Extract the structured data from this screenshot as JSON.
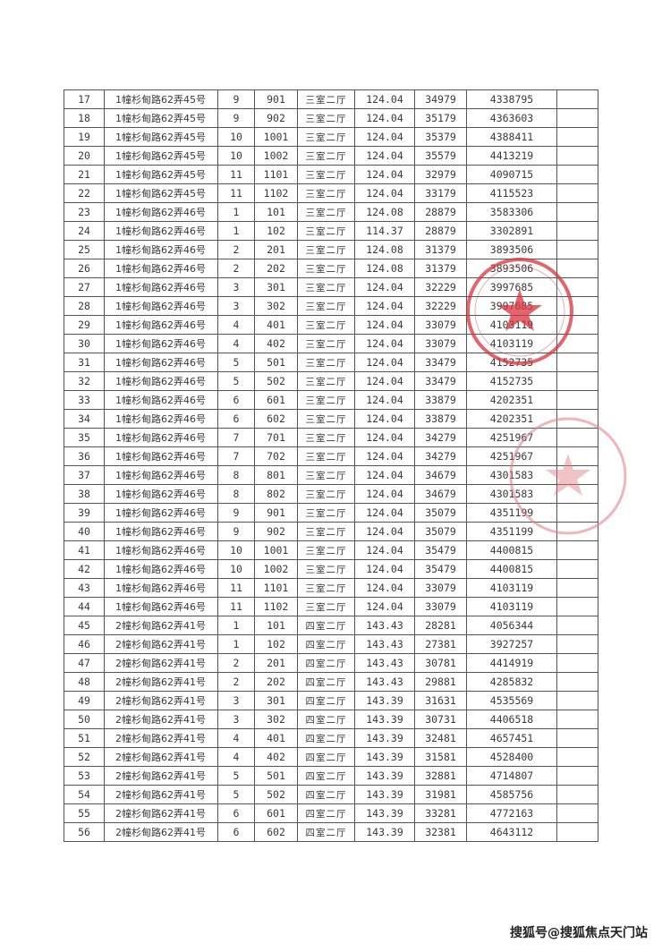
{
  "table": {
    "rows": [
      [
        "17",
        "1幢杉甸路62弄45号",
        "9",
        "901",
        "三室二厅",
        "124.04",
        "34979",
        "4338795",
        ""
      ],
      [
        "18",
        "1幢杉甸路62弄45号",
        "9",
        "902",
        "三室二厅",
        "124.04",
        "35179",
        "4363603",
        ""
      ],
      [
        "19",
        "1幢杉甸路62弄45号",
        "10",
        "1001",
        "三室二厅",
        "124.04",
        "35379",
        "4388411",
        ""
      ],
      [
        "20",
        "1幢杉甸路62弄45号",
        "10",
        "1002",
        "三室二厅",
        "124.04",
        "35579",
        "4413219",
        ""
      ],
      [
        "21",
        "1幢杉甸路62弄45号",
        "11",
        "1101",
        "三室二厅",
        "124.04",
        "32979",
        "4090715",
        ""
      ],
      [
        "22",
        "1幢杉甸路62弄45号",
        "11",
        "1102",
        "三室二厅",
        "124.04",
        "33179",
        "4115523",
        ""
      ],
      [
        "23",
        "1幢杉甸路62弄46号",
        "1",
        "101",
        "三室二厅",
        "124.08",
        "28879",
        "3583306",
        ""
      ],
      [
        "24",
        "1幢杉甸路62弄46号",
        "1",
        "102",
        "三室二厅",
        "114.37",
        "28879",
        "3302891",
        ""
      ],
      [
        "25",
        "1幢杉甸路62弄46号",
        "2",
        "201",
        "三室二厅",
        "124.08",
        "31379",
        "3893506",
        ""
      ],
      [
        "26",
        "1幢杉甸路62弄46号",
        "2",
        "202",
        "三室二厅",
        "124.08",
        "31379",
        "3893506",
        ""
      ],
      [
        "27",
        "1幢杉甸路62弄46号",
        "3",
        "301",
        "三室二厅",
        "124.04",
        "32229",
        "3997685",
        ""
      ],
      [
        "28",
        "1幢杉甸路62弄46号",
        "3",
        "302",
        "三室二厅",
        "124.04",
        "32229",
        "3997685",
        ""
      ],
      [
        "29",
        "1幢杉甸路62弄46号",
        "4",
        "401",
        "三室二厅",
        "124.04",
        "33079",
        "4103119",
        ""
      ],
      [
        "30",
        "1幢杉甸路62弄46号",
        "4",
        "402",
        "三室二厅",
        "124.04",
        "33079",
        "4103119",
        ""
      ],
      [
        "31",
        "1幢杉甸路62弄46号",
        "5",
        "501",
        "三室二厅",
        "124.04",
        "33479",
        "4152735",
        ""
      ],
      [
        "32",
        "1幢杉甸路62弄46号",
        "5",
        "502",
        "三室二厅",
        "124.04",
        "33479",
        "4152735",
        ""
      ],
      [
        "33",
        "1幢杉甸路62弄46号",
        "6",
        "601",
        "三室二厅",
        "124.04",
        "33879",
        "4202351",
        ""
      ],
      [
        "34",
        "1幢杉甸路62弄46号",
        "6",
        "602",
        "三室二厅",
        "124.04",
        "33879",
        "4202351",
        ""
      ],
      [
        "35",
        "1幢杉甸路62弄46号",
        "7",
        "701",
        "三室二厅",
        "124.04",
        "34279",
        "4251967",
        ""
      ],
      [
        "36",
        "1幢杉甸路62弄46号",
        "7",
        "702",
        "三室二厅",
        "124.04",
        "34279",
        "4251967",
        ""
      ],
      [
        "37",
        "1幢杉甸路62弄46号",
        "8",
        "801",
        "三室二厅",
        "124.04",
        "34679",
        "4301583",
        ""
      ],
      [
        "38",
        "1幢杉甸路62弄46号",
        "8",
        "802",
        "三室二厅",
        "124.04",
        "34679",
        "4301583",
        ""
      ],
      [
        "39",
        "1幢杉甸路62弄46号",
        "9",
        "901",
        "三室二厅",
        "124.04",
        "35079",
        "4351199",
        ""
      ],
      [
        "40",
        "1幢杉甸路62弄46号",
        "9",
        "902",
        "三室二厅",
        "124.04",
        "35079",
        "4351199",
        ""
      ],
      [
        "41",
        "1幢杉甸路62弄46号",
        "10",
        "1001",
        "三室二厅",
        "124.04",
        "35479",
        "4400815",
        ""
      ],
      [
        "42",
        "1幢杉甸路62弄46号",
        "10",
        "1002",
        "三室二厅",
        "124.04",
        "35479",
        "4400815",
        ""
      ],
      [
        "43",
        "1幢杉甸路62弄46号",
        "11",
        "1101",
        "三室二厅",
        "124.04",
        "33079",
        "4103119",
        ""
      ],
      [
        "44",
        "1幢杉甸路62弄46号",
        "11",
        "1102",
        "三室二厅",
        "124.04",
        "33079",
        "4103119",
        ""
      ],
      [
        "45",
        "2幢杉甸路62弄41号",
        "1",
        "101",
        "四室二厅",
        "143.43",
        "28281",
        "4056344",
        ""
      ],
      [
        "46",
        "2幢杉甸路62弄41号",
        "1",
        "102",
        "四室二厅",
        "143.43",
        "27381",
        "3927257",
        ""
      ],
      [
        "47",
        "2幢杉甸路62弄41号",
        "2",
        "201",
        "四室二厅",
        "143.43",
        "30781",
        "4414919",
        ""
      ],
      [
        "48",
        "2幢杉甸路62弄41号",
        "2",
        "202",
        "四室二厅",
        "143.43",
        "29881",
        "4285832",
        ""
      ],
      [
        "49",
        "2幢杉甸路62弄41号",
        "3",
        "301",
        "四室二厅",
        "143.39",
        "31631",
        "4535569",
        ""
      ],
      [
        "50",
        "2幢杉甸路62弄41号",
        "3",
        "302",
        "四室二厅",
        "143.39",
        "30731",
        "4406518",
        ""
      ],
      [
        "51",
        "2幢杉甸路62弄41号",
        "4",
        "401",
        "四室二厅",
        "143.39",
        "32481",
        "4657451",
        ""
      ],
      [
        "52",
        "2幢杉甸路62弄41号",
        "4",
        "402",
        "四室二厅",
        "143.39",
        "31581",
        "4528400",
        ""
      ],
      [
        "53",
        "2幢杉甸路62弄41号",
        "5",
        "501",
        "四室二厅",
        "143.39",
        "32881",
        "4714807",
        ""
      ],
      [
        "54",
        "2幢杉甸路62弄41号",
        "5",
        "502",
        "四室二厅",
        "143.39",
        "31981",
        "4585756",
        ""
      ],
      [
        "55",
        "2幢杉甸路62弄41号",
        "6",
        "601",
        "四室二厅",
        "143.39",
        "33281",
        "4772163",
        ""
      ],
      [
        "56",
        "2幢杉甸路62弄41号",
        "6",
        "602",
        "四室二厅",
        "143.39",
        "32381",
        "4643112",
        ""
      ]
    ]
  },
  "stamps": {
    "color": "#d8323c"
  },
  "footer": {
    "watermark": "搜狐号@搜狐焦点天门站"
  }
}
